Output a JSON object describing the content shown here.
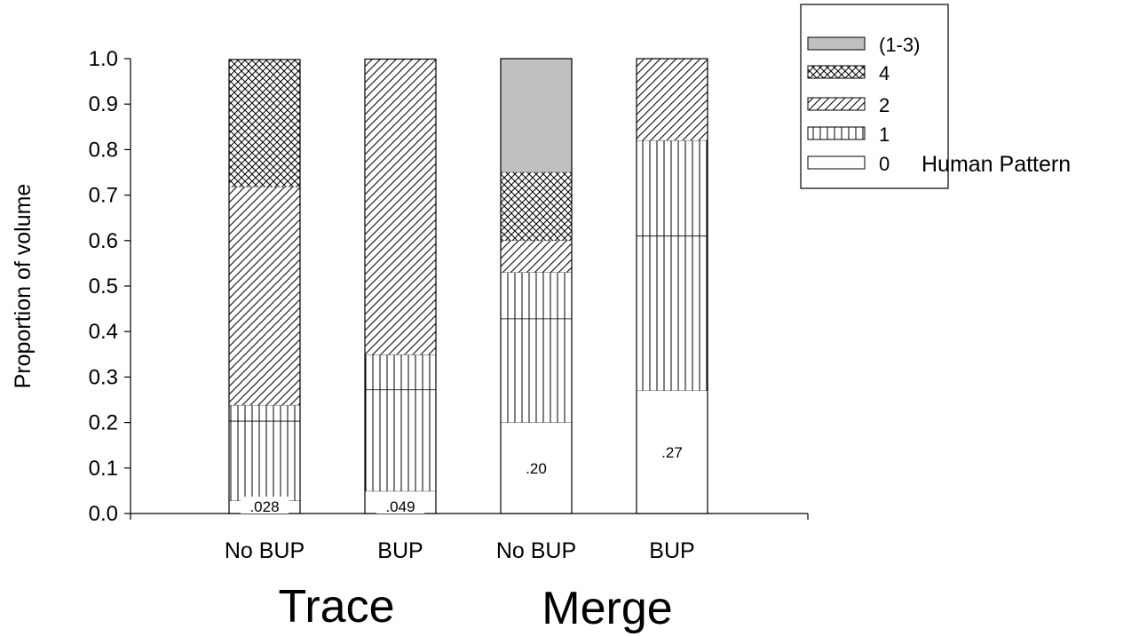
{
  "chart_data": {
    "type": "bar",
    "stacked": true,
    "ylabel": "Proportion of volume",
    "ylim": [
      0,
      1.0
    ],
    "yticks": [
      "0.0",
      "0.1",
      "0.2",
      "0.3",
      "0.4",
      "0.5",
      "0.6",
      "0.7",
      "0.8",
      "0.9",
      "1.0"
    ],
    "categories": [
      "No BUP",
      "BUP",
      "No BUP",
      "BUP"
    ],
    "groups": [
      {
        "label": "Trace",
        "categories": [
          0,
          1
        ]
      },
      {
        "label": "Merge",
        "categories": [
          2,
          3
        ]
      }
    ],
    "series": [
      {
        "name": "0",
        "pattern": "empty",
        "values": [
          0.028,
          0.049,
          0.2,
          0.27
        ]
      },
      {
        "name": "1",
        "pattern": "vertical",
        "values": [
          0.21,
          0.3,
          0.33,
          0.55
        ]
      },
      {
        "name": "2",
        "pattern": "diagonal",
        "values": [
          0.48,
          0.65,
          0.07,
          0.18
        ]
      },
      {
        "name": "4",
        "pattern": "crosshatch",
        "values": [
          0.28,
          0.0,
          0.15,
          0.0
        ]
      },
      {
        "name": "(1-3)",
        "pattern": "gray",
        "values": [
          0.0,
          0.0,
          0.25,
          0.0
        ]
      }
    ],
    "inner_lines": [
      [
        0.203
      ],
      [
        0.272
      ],
      [
        0.428
      ],
      [
        0.61
      ],
      [
        0.82,
        0.865,
        0.91,
        0.95,
        0.978
      ]
    ],
    "data_labels": [
      ".028",
      ".049",
      ".20",
      ".27"
    ],
    "legend": {
      "position": "top-right",
      "entries": [
        "(1-3)",
        "4",
        "2",
        "1",
        "0"
      ],
      "title": "Human Pattern"
    }
  }
}
